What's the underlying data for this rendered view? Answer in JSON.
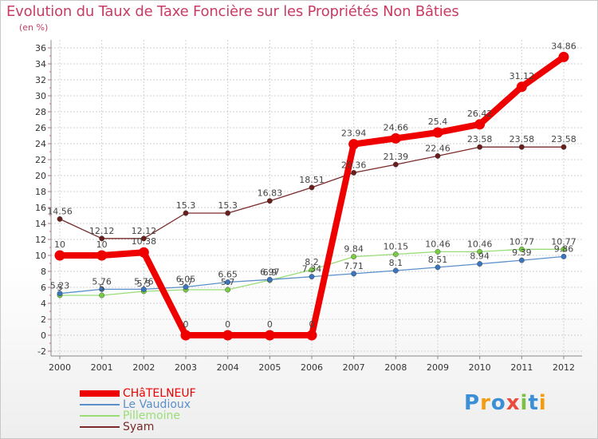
{
  "title": "Evolution du Taux de Taxe Foncière sur les Propriétés Non Bâties",
  "unit_label": "(en %)",
  "logo": {
    "text": "Proxiti",
    "letters": [
      "P",
      "r",
      "o",
      "x",
      "i",
      "t",
      "i"
    ],
    "colors": [
      "#3b8fd6",
      "#f39c12",
      "#3b8fd6",
      "#e74c3c",
      "#7cc242",
      "#3b8fd6",
      "#f39c12"
    ]
  },
  "colors": {
    "title": "#c83c64",
    "axis": "#888888",
    "grid": "#d0d0d0",
    "tick_label": "#333333",
    "value_label": "#444444"
  },
  "chart_data": {
    "type": "line",
    "title": "Evolution du Taux de Taxe Foncière sur les Propriétés Non Bâties",
    "xlabel": "",
    "ylabel": "(en %)",
    "ylim": [
      -2,
      36
    ],
    "yticks": [
      -2,
      0,
      2,
      4,
      6,
      8,
      10,
      12,
      14,
      16,
      18,
      20,
      22,
      24,
      26,
      28,
      30,
      32,
      34,
      36
    ],
    "categories": [
      "2000",
      "2001",
      "2002",
      "2003",
      "2004",
      "2005",
      "2006",
      "2007",
      "2008",
      "2009",
      "2010",
      "2011",
      "2012"
    ],
    "legend_position": "bottom-left",
    "series": [
      {
        "name": "CHâTELNEUF",
        "color": "#ee0000",
        "marker_color": "#ee0000",
        "values": [
          10,
          10,
          10.38,
          0,
          0,
          0,
          0,
          23.94,
          24.66,
          25.4,
          26.42,
          31.12,
          34.86
        ],
        "labels": [
          "10",
          "10",
          "10.38",
          "0",
          "0",
          "0",
          "0",
          "23.94",
          "24.66",
          "25.4",
          "26.42",
          "31.12",
          "34.86"
        ]
      },
      {
        "name": "Le Vaudioux",
        "color": "#5b8fc9",
        "marker_color": "#3a75bd",
        "values": [
          5.23,
          5.76,
          5.76,
          6.05,
          6.65,
          6.97,
          7.34,
          7.71,
          8.1,
          8.51,
          8.94,
          9.39,
          9.86
        ],
        "labels": [
          "5.23",
          "5.76",
          "5.76",
          "6.05",
          "6.65",
          "6.97",
          "7.34",
          "7.71",
          "8.1",
          "8.51",
          "8.94",
          "9.39",
          "9.86"
        ]
      },
      {
        "name": "Pillemoine",
        "color": "#99dd77",
        "marker_color": "#77cc44",
        "values": [
          5,
          5,
          5.5,
          5.7,
          5.7,
          6.9,
          8.2,
          9.84,
          10.15,
          10.46,
          10.46,
          10.77,
          10.77
        ],
        "labels": [
          "5",
          "5",
          "5.5",
          "5.7",
          "5.7",
          "6.9",
          "8.2",
          "9.84",
          "10.15",
          "10.46",
          "10.46",
          "10.77",
          "10.77"
        ]
      },
      {
        "name": "Syam",
        "color": "#7a2a2a",
        "marker_color": "#6a1e1e",
        "values": [
          14.56,
          12.12,
          12.12,
          15.3,
          15.3,
          16.83,
          18.51,
          20.36,
          21.39,
          22.46,
          23.58,
          23.58,
          23.58
        ],
        "labels": [
          "14.56",
          "12.12",
          "12.12",
          "15.3",
          "15.3",
          "16.83",
          "18.51",
          "20.36",
          "21.39",
          "22.46",
          "23.58",
          "23.58",
          "23.58"
        ]
      }
    ]
  }
}
